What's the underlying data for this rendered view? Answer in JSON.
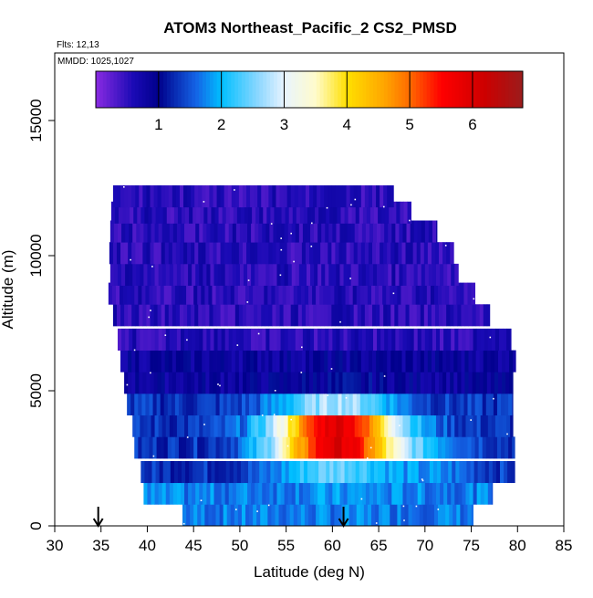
{
  "chart_data": {
    "type": "heatmap",
    "title": "ATOM3 Northeast_Pacific_2 CS2_PMSD",
    "subtitle_flights": "Flts: 12,13",
    "subtitle_dates": "MMDD: 1025,1027",
    "xlabel": "Latitude (deg N)",
    "ylabel": "Altitude (m)",
    "xlim": [
      30,
      85
    ],
    "ylim": [
      0,
      17500
    ],
    "x_ticks": [
      30,
      35,
      40,
      45,
      50,
      55,
      60,
      65,
      70,
      75,
      80,
      85
    ],
    "y_ticks": [
      0,
      5000,
      10000,
      15000
    ],
    "colorbar": {
      "range": [
        0,
        6.8
      ],
      "ticks": [
        1,
        2,
        3,
        4,
        5,
        6
      ],
      "stops": [
        {
          "value": 0.0,
          "color": "#8a2be2"
        },
        {
          "value": 0.6,
          "color": "#1a0ab5"
        },
        {
          "value": 1.0,
          "color": "#00008b"
        },
        {
          "value": 1.6,
          "color": "#1464e6"
        },
        {
          "value": 2.0,
          "color": "#00bfff"
        },
        {
          "value": 2.6,
          "color": "#8fd8ff"
        },
        {
          "value": 3.0,
          "color": "#e8f4ff"
        },
        {
          "value": 3.5,
          "color": "#fffbcc"
        },
        {
          "value": 4.0,
          "color": "#ffe000"
        },
        {
          "value": 4.6,
          "color": "#ffa500"
        },
        {
          "value": 5.0,
          "color": "#ff6a00"
        },
        {
          "value": 5.5,
          "color": "#ff0000"
        },
        {
          "value": 6.2,
          "color": "#cc0000"
        },
        {
          "value": 6.8,
          "color": "#9b1c1c"
        }
      ]
    },
    "coverage": [
      {
        "alt": 400,
        "lat_min": 43.8,
        "lat_max": 75.2
      },
      {
        "alt": 1200,
        "lat_min": 39.6,
        "lat_max": 77.3
      },
      {
        "alt": 2000,
        "lat_min": 39.3,
        "lat_max": 79.7
      },
      {
        "alt": 2900,
        "lat_min": 38.6,
        "lat_max": 79.7
      },
      {
        "alt": 3700,
        "lat_min": 38.4,
        "lat_max": 79.5
      },
      {
        "alt": 4500,
        "lat_min": 37.8,
        "lat_max": 79.5
      },
      {
        "alt": 5300,
        "lat_min": 37.5,
        "lat_max": 79.5
      },
      {
        "alt": 6100,
        "lat_min": 37.1,
        "lat_max": 79.8
      },
      {
        "alt": 6900,
        "lat_min": 36.8,
        "lat_max": 79.3
      },
      {
        "alt": 7800,
        "lat_min": 36.3,
        "lat_max": 77.0
      },
      {
        "alt": 8600,
        "lat_min": 35.8,
        "lat_max": 75.4
      },
      {
        "alt": 9300,
        "lat_min": 36.0,
        "lat_max": 73.6
      },
      {
        "alt": 10100,
        "lat_min": 35.9,
        "lat_max": 73.1
      },
      {
        "alt": 10900,
        "lat_min": 36.0,
        "lat_max": 71.3
      },
      {
        "alt": 11600,
        "lat_min": 36.1,
        "lat_max": 68.5
      },
      {
        "alt": 12200,
        "lat_min": 36.3,
        "lat_max": 66.6
      }
    ],
    "hotspot": {
      "lat": 60.5,
      "alt": 3300,
      "peak_value": 6.0
    },
    "flight_markers_lat": [
      34.7,
      61.2
    ]
  }
}
